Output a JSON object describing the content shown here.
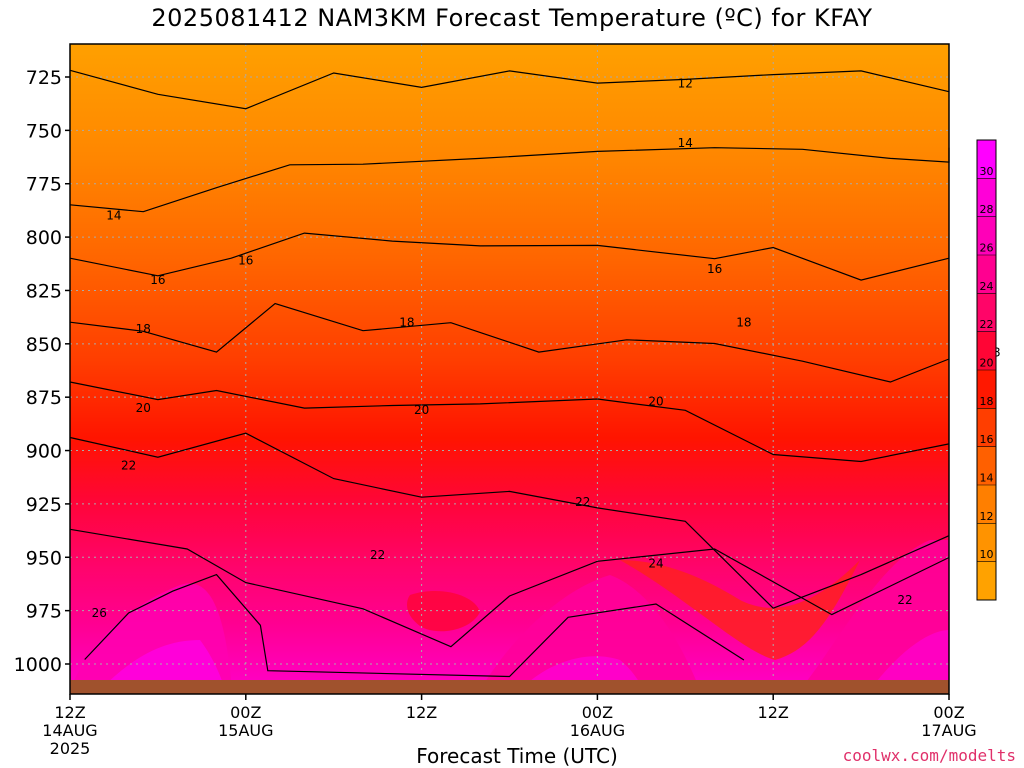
{
  "title": "2025081412 NAM3KM Forecast Temperature (ºC) for KFAY",
  "x_axis_title": "Forecast Time (UTC)",
  "credit": "coolwx.com/modelts",
  "colors": {
    "cold": "#ffa200",
    "warm": "#ff00ff",
    "ground": "#a0522d",
    "contour": "#000000",
    "grid": "#bbbbbb"
  },
  "chart_data": {
    "type": "heatmap",
    "title": "2025081412 NAM3KM Forecast Temperature (ºC) for KFAY",
    "xlabel": "Forecast Time (UTC)",
    "ylabel": "",
    "y_scale": "pressure (hPa), inverted",
    "ylim": [
      1013,
      710
    ],
    "xlim": [
      "2025-08-14 12Z",
      "2025-08-17 00Z"
    ],
    "y_ticks": [
      725,
      750,
      775,
      800,
      825,
      850,
      875,
      900,
      925,
      950,
      975,
      1000
    ],
    "x_ticks": [
      {
        "top": "12Z",
        "mid": "14AUG",
        "bot": "2025"
      },
      {
        "top": "00Z",
        "mid": "15AUG",
        "bot": ""
      },
      {
        "top": "12Z",
        "mid": "",
        "bot": ""
      },
      {
        "top": "00Z",
        "mid": "16AUG",
        "bot": ""
      },
      {
        "top": "12Z",
        "mid": "",
        "bot": ""
      },
      {
        "top": "00Z",
        "mid": "17AUG",
        "bot": ""
      }
    ],
    "colorbar": {
      "ticks": [
        10,
        12,
        14,
        16,
        18,
        20,
        22,
        24,
        26,
        28,
        30
      ],
      "bands": [
        {
          "from": 8,
          "to": 10,
          "color": "#ffa200"
        },
        {
          "from": 10,
          "to": 12,
          "color": "#ff9300"
        },
        {
          "from": 12,
          "to": 14,
          "color": "#ff7f00"
        },
        {
          "from": 14,
          "to": 16,
          "color": "#ff6000"
        },
        {
          "from": 16,
          "to": 18,
          "color": "#ff3e00"
        },
        {
          "from": 18,
          "to": 20,
          "color": "#ff1800"
        },
        {
          "from": 20,
          "to": 22,
          "color": "#ff0535"
        },
        {
          "from": 22,
          "to": 24,
          "color": "#ff0568"
        },
        {
          "from": 24,
          "to": 26,
          "color": "#ff0090"
        },
        {
          "from": 26,
          "to": 28,
          "color": "#ff00b8"
        },
        {
          "from": 28,
          "to": 30,
          "color": "#ff00d8"
        },
        {
          "from": 30,
          "to": 32,
          "color": "#ff00ff"
        }
      ]
    },
    "contour_labels": [
      {
        "value": "12",
        "time_h": 42,
        "p": 728
      },
      {
        "value": "12",
        "time_h": 66,
        "p": 731
      },
      {
        "value": "14",
        "time_h": 3,
        "p": 790
      },
      {
        "value": "14",
        "time_h": 42,
        "p": 756
      },
      {
        "value": "14",
        "time_h": 72,
        "p": 758
      },
      {
        "value": "16",
        "time_h": 6,
        "p": 820
      },
      {
        "value": "16",
        "time_h": 12,
        "p": 811
      },
      {
        "value": "16",
        "time_h": 44,
        "p": 815
      },
      {
        "value": "16",
        "time_h": 72,
        "p": 823
      },
      {
        "value": "18",
        "time_h": 5,
        "p": 843
      },
      {
        "value": "18",
        "time_h": 23,
        "p": 840
      },
      {
        "value": "18",
        "time_h": 46,
        "p": 840
      },
      {
        "value": "18",
        "time_h": 63,
        "p": 854
      },
      {
        "value": "20",
        "time_h": 5,
        "p": 880
      },
      {
        "value": "20",
        "time_h": 24,
        "p": 881
      },
      {
        "value": "20",
        "time_h": 40,
        "p": 877
      },
      {
        "value": "20",
        "time_h": 68,
        "p": 897
      },
      {
        "value": "22",
        "time_h": 4,
        "p": 907
      },
      {
        "value": "22",
        "time_h": 21,
        "p": 949
      },
      {
        "value": "22",
        "time_h": 35,
        "p": 924
      },
      {
        "value": "22",
        "time_h": 57,
        "p": 970
      },
      {
        "value": "24",
        "time_h": 40,
        "p": 953
      },
      {
        "value": "26",
        "time_h": 2,
        "p": 976
      }
    ]
  }
}
